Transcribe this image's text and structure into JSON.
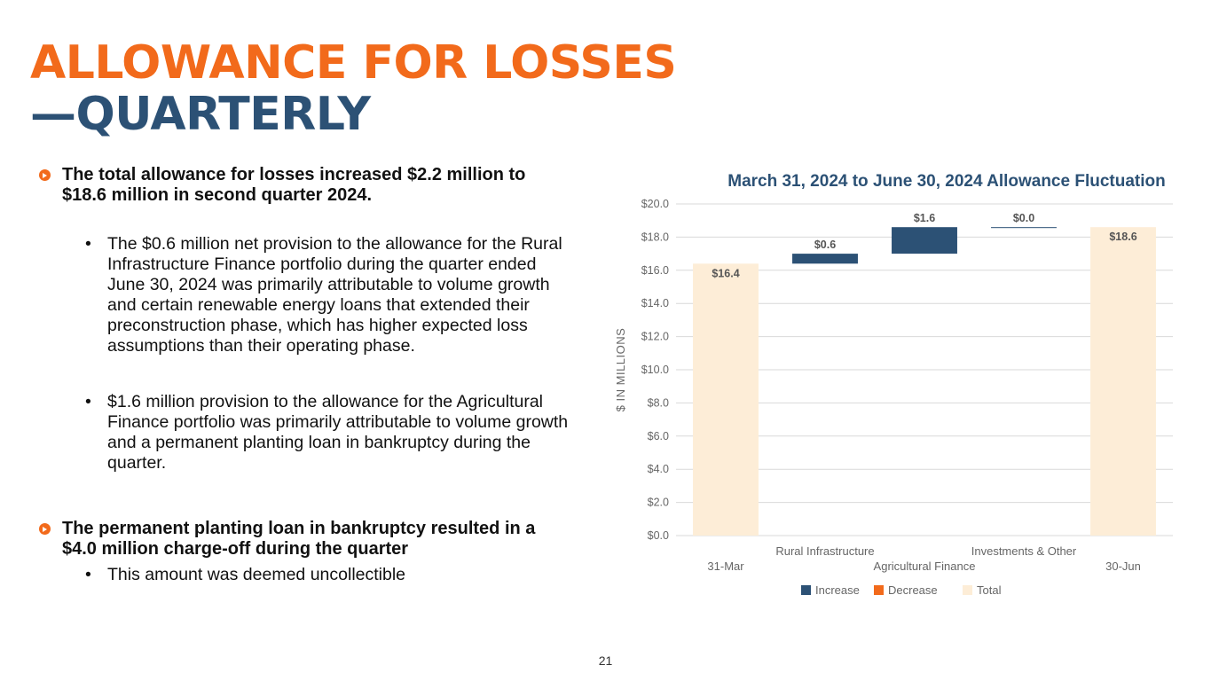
{
  "slide": {
    "title_line1": "ALLOWANCE FOR LOSSES",
    "title_line2": "—QUARTERLY",
    "page_number": "21",
    "colors": {
      "orange": "#f26a1b",
      "navy": "#2c5175",
      "total": "#fdedd7"
    }
  },
  "bullets": [
    {
      "text": "The total allowance for losses increased $2.2 million to $18.6 million in second quarter 2024.",
      "subs": [
        "The $0.6 million net provision to the allowance for the Rural Infrastructure Finance portfolio during the quarter ended June 30, 2024 was primarily attributable to volume growth and certain renewable energy loans that extended their preconstruction phase, which has higher expected loss assumptions than their operating phase.",
        "$1.6 million provision to the allowance for the Agricultural Finance portfolio was primarily attributable to volume growth and a permanent planting loan in bankruptcy during the quarter."
      ]
    },
    {
      "text": "The permanent planting loan in bankruptcy resulted in a $4.0 million charge-off during the quarter",
      "subs": [
        "This amount was deemed uncollectible"
      ]
    }
  ],
  "chart_data": {
    "type": "bar",
    "subtype": "waterfall",
    "title": "March 31, 2024 to June 30, 2024 Allowance Fluctuation",
    "ylabel": "$ IN MILLIONS",
    "xlabel": "",
    "ylim": [
      0,
      20
    ],
    "yticks": [
      "$0.0",
      "$2.0",
      "$4.0",
      "$6.0",
      "$8.0",
      "$10.0",
      "$12.0",
      "$14.0",
      "$16.0",
      "$18.0",
      "$20.0"
    ],
    "grid": true,
    "legend_position": "bottom",
    "categories": [
      "31-Mar",
      "Rural Infrastructure",
      "Agricultural Finance",
      "Investments & Other",
      "30-Jun"
    ],
    "bars": [
      {
        "category": "31-Mar",
        "kind": "Total",
        "start": 0,
        "end": 16.4,
        "label": "$16.4"
      },
      {
        "category": "Rural Infrastructure",
        "kind": "Increase",
        "start": 16.4,
        "end": 17.0,
        "label": "$0.6"
      },
      {
        "category": "Agricultural Finance",
        "kind": "Increase",
        "start": 17.0,
        "end": 18.6,
        "label": "$1.6"
      },
      {
        "category": "Investments & Other",
        "kind": "Increase",
        "start": 18.6,
        "end": 18.6,
        "label": "$0.0"
      },
      {
        "category": "30-Jun",
        "kind": "Total",
        "start": 0,
        "end": 18.6,
        "label": "$18.6"
      }
    ],
    "legend": [
      {
        "name": "Increase",
        "color": "#2c5175"
      },
      {
        "name": "Decrease",
        "color": "#f26a1b"
      },
      {
        "name": "Total",
        "color": "#fdedd7"
      }
    ]
  }
}
